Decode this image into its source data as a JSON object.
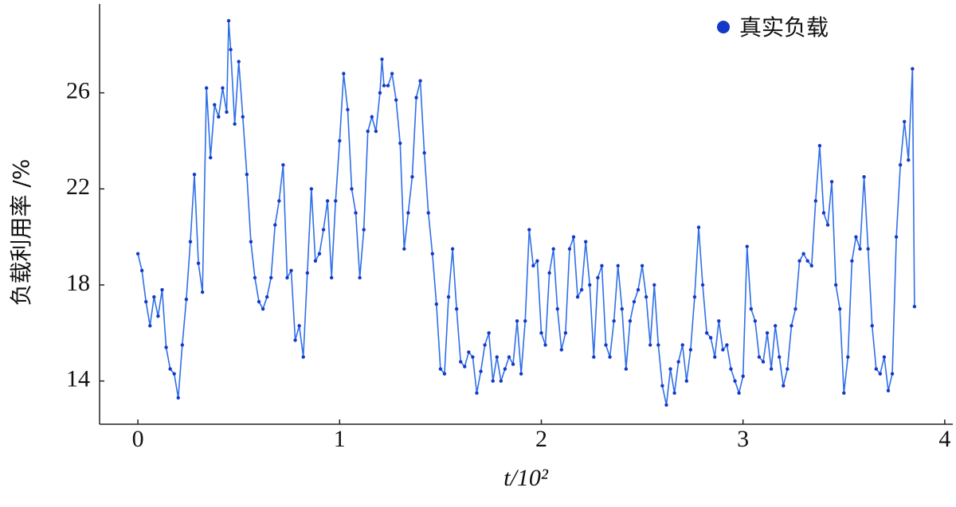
{
  "chart_data": {
    "type": "line",
    "x_label": "t/10²",
    "y_label": "负载利用率 /%",
    "xlim": [
      -0.19,
      4.04
    ],
    "xticks": [
      0,
      1,
      2,
      3,
      4
    ],
    "ylim": [
      12.2,
      29.7
    ],
    "yticks": [
      14,
      18,
      22,
      26
    ],
    "legend": "upper right",
    "x": [
      0,
      0.02,
      0.04,
      0.06,
      0.08,
      0.1,
      0.12,
      0.14,
      0.16,
      0.18,
      0.2,
      0.22,
      0.24,
      0.26,
      0.28,
      0.3,
      0.32,
      0.34,
      0.36,
      0.38,
      0.4,
      0.42,
      0.44,
      0.45,
      0.46,
      0.48,
      0.5,
      0.52,
      0.54,
      0.56,
      0.58,
      0.6,
      0.62,
      0.64,
      0.66,
      0.68,
      0.7,
      0.72,
      0.74,
      0.76,
      0.78,
      0.8,
      0.82,
      0.84,
      0.86,
      0.88,
      0.9,
      0.92,
      0.94,
      0.96,
      0.98,
      1,
      1.02,
      1.04,
      1.06,
      1.08,
      1.1,
      1.12,
      1.14,
      1.16,
      1.18,
      1.2,
      1.21,
      1.22,
      1.24,
      1.26,
      1.28,
      1.3,
      1.32,
      1.34,
      1.36,
      1.38,
      1.4,
      1.42,
      1.44,
      1.46,
      1.48,
      1.5,
      1.52,
      1.54,
      1.56,
      1.58,
      1.6,
      1.62,
      1.64,
      1.66,
      1.68,
      1.7,
      1.72,
      1.74,
      1.76,
      1.78,
      1.8,
      1.82,
      1.84,
      1.86,
      1.88,
      1.9,
      1.92,
      1.94,
      1.96,
      1.98,
      2,
      2.02,
      2.04,
      2.06,
      2.08,
      2.1,
      2.12,
      2.14,
      2.16,
      2.18,
      2.2,
      2.22,
      2.24,
      2.26,
      2.28,
      2.3,
      2.32,
      2.34,
      2.36,
      2.38,
      2.4,
      2.42,
      2.44,
      2.46,
      2.48,
      2.5,
      2.52,
      2.54,
      2.56,
      2.58,
      2.6,
      2.62,
      2.64,
      2.66,
      2.68,
      2.7,
      2.72,
      2.74,
      2.76,
      2.78,
      2.8,
      2.82,
      2.84,
      2.86,
      2.88,
      2.9,
      2.92,
      2.94,
      2.96,
      2.98,
      3,
      3.02,
      3.04,
      3.06,
      3.08,
      3.1,
      3.12,
      3.14,
      3.16,
      3.18,
      3.2,
      3.22,
      3.24,
      3.26,
      3.28,
      3.3,
      3.32,
      3.34,
      3.36,
      3.38,
      3.4,
      3.42,
      3.44,
      3.46,
      3.48,
      3.5,
      3.52,
      3.54,
      3.56,
      3.58,
      3.6,
      3.62,
      3.64,
      3.66,
      3.68,
      3.7,
      3.72,
      3.74,
      3.76,
      3.78,
      3.8,
      3.82,
      3.84,
      3.85
    ],
    "series": [
      {
        "name": "真实负载",
        "color": "#2f6fe8",
        "marker_color": "#1438c8",
        "values": [
          19.3,
          18.6,
          17.3,
          16.3,
          17.5,
          16.7,
          17.8,
          15.4,
          14.5,
          14.3,
          13.3,
          15.5,
          17.4,
          19.8,
          22.6,
          18.9,
          17.7,
          26.2,
          23.3,
          25.5,
          25.0,
          26.2,
          25.2,
          29.0,
          27.8,
          24.7,
          27.3,
          25.0,
          22.6,
          19.8,
          18.3,
          17.3,
          17.0,
          17.5,
          18.3,
          20.5,
          21.5,
          23.0,
          18.3,
          18.6,
          15.7,
          16.3,
          15.0,
          18.5,
          22.0,
          19.0,
          19.3,
          20.3,
          21.5,
          18.3,
          21.5,
          24.0,
          26.8,
          25.3,
          22.0,
          21.0,
          18.3,
          20.3,
          24.4,
          25.0,
          24.4,
          26.0,
          27.4,
          26.3,
          26.3,
          26.8,
          25.7,
          23.9,
          19.5,
          21.0,
          22.5,
          25.8,
          26.5,
          23.5,
          21.0,
          19.3,
          17.2,
          14.5,
          14.3,
          17.5,
          19.5,
          17.0,
          14.8,
          14.6,
          15.2,
          15.0,
          13.5,
          14.4,
          15.5,
          16.0,
          14.0,
          15.0,
          14.0,
          14.5,
          15.0,
          14.7,
          16.5,
          14.3,
          16.5,
          20.3,
          18.8,
          19.0,
          16.0,
          15.5,
          18.5,
          19.5,
          17.0,
          15.3,
          16.0,
          19.5,
          20.0,
          17.5,
          17.8,
          19.8,
          18.0,
          15.0,
          18.3,
          18.8,
          15.5,
          15.0,
          16.5,
          18.8,
          17.0,
          14.5,
          16.5,
          17.3,
          17.8,
          18.8,
          17.5,
          15.5,
          18.0,
          15.5,
          13.8,
          13.0,
          14.5,
          13.5,
          14.8,
          15.5,
          14.0,
          15.3,
          17.5,
          20.4,
          18.0,
          16.0,
          15.8,
          15.0,
          16.5,
          15.3,
          15.5,
          14.5,
          14.0,
          13.5,
          14.2,
          19.6,
          17.0,
          16.5,
          15.0,
          14.8,
          16.0,
          14.5,
          16.3,
          15.0,
          13.8,
          14.5,
          16.3,
          17.0,
          19.0,
          19.3,
          19.0,
          18.8,
          21.5,
          23.8,
          21.0,
          20.5,
          22.3,
          18.0,
          17.0,
          13.5,
          15.0,
          19.0,
          20.0,
          19.5,
          22.5,
          19.5,
          16.3,
          14.5,
          14.3,
          15.0,
          13.6,
          14.3,
          20.0,
          23.0,
          24.8,
          23.2,
          27.0,
          17.1
        ]
      }
    ]
  }
}
